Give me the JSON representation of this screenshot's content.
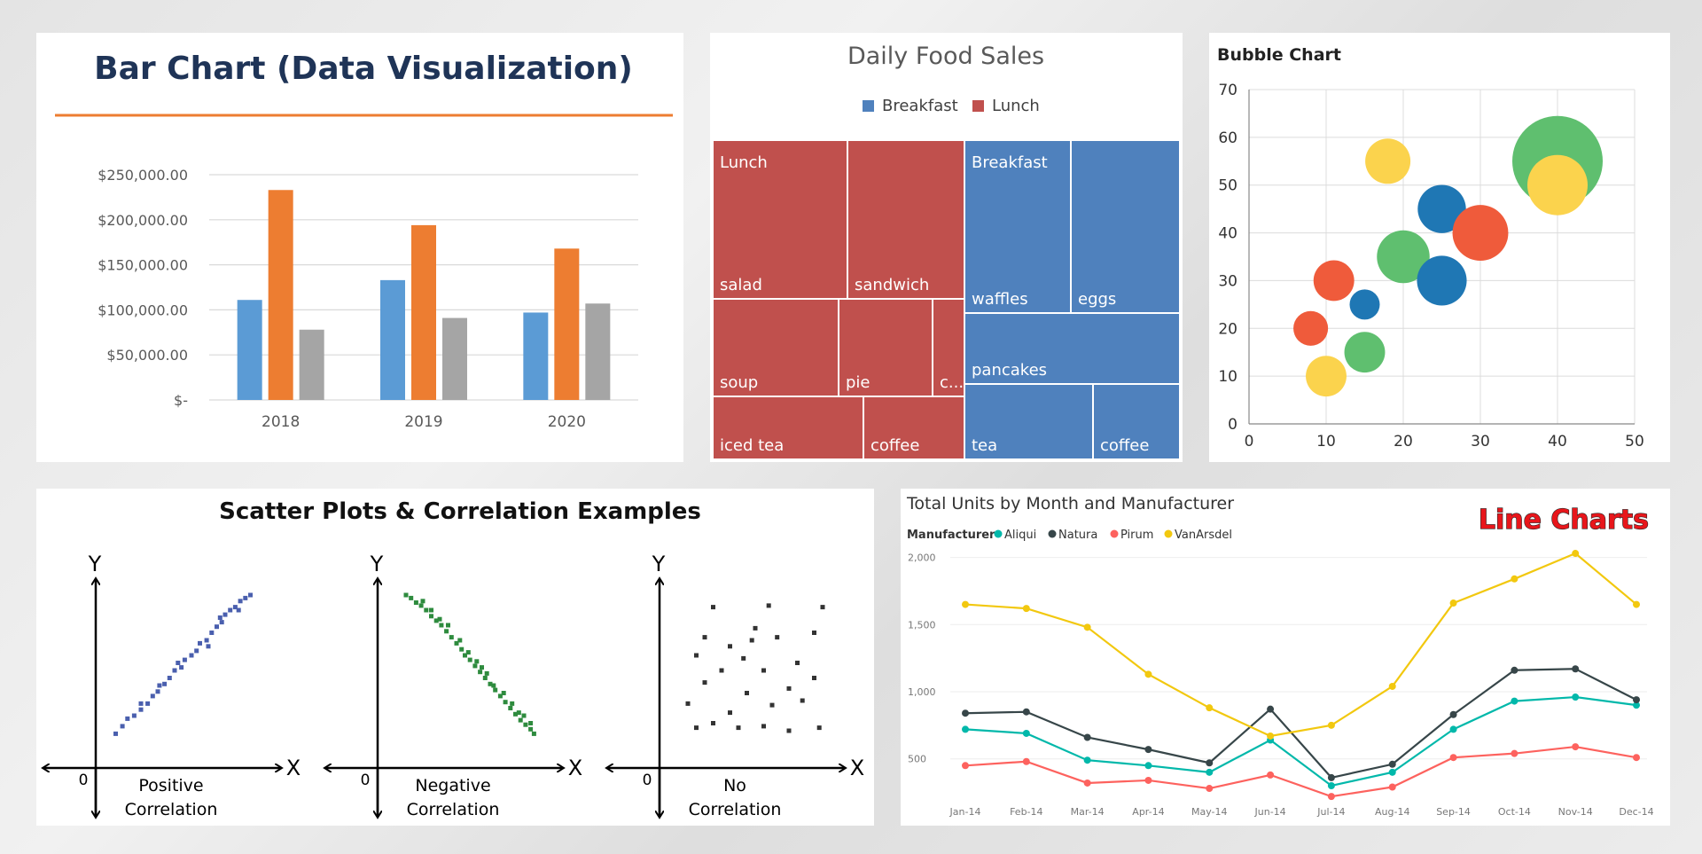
{
  "chart_data": [
    {
      "type": "bar",
      "title": "Bar Chart (Data Visualization)",
      "categories": [
        "2018",
        "2019",
        "2020"
      ],
      "series": [
        {
          "values": [
            111000,
            133000,
            97000
          ],
          "color": "#5b9bd5"
        },
        {
          "values": [
            233000,
            194000,
            168000
          ],
          "color": "#ed7d31"
        },
        {
          "values": [
            78000,
            91000,
            107000
          ],
          "color": "#a5a5a5"
        }
      ],
      "yticks": [
        0,
        50000,
        100000,
        150000,
        200000,
        250000
      ],
      "ytick_labels": [
        "$-",
        "$50,000.00",
        "$100,000.00",
        "$150,000.00",
        "$200,000.00",
        "$250,000.00"
      ],
      "ylim": [
        0,
        250000
      ],
      "accent": "#ed7d31"
    },
    {
      "type": "treemap",
      "title": "Daily Food Sales",
      "legend": [
        {
          "name": "Breakfast",
          "color": "#4f81bd"
        },
        {
          "name": "Lunch",
          "color": "#c0504d"
        }
      ],
      "groups": [
        {
          "name": "Lunch",
          "items": [
            {
              "label": "salad"
            },
            {
              "label": "sandwich"
            },
            {
              "label": "soup"
            },
            {
              "label": "pie"
            },
            {
              "label": "c..."
            },
            {
              "label": "iced tea"
            },
            {
              "label": "coffee"
            }
          ]
        },
        {
          "name": "Breakfast",
          "items": [
            {
              "label": "waffles"
            },
            {
              "label": "eggs"
            },
            {
              "label": "pancakes"
            },
            {
              "label": "tea"
            },
            {
              "label": "coffee"
            }
          ]
        }
      ]
    },
    {
      "type": "bubble",
      "title": "Bubble Chart",
      "xlim": [
        0,
        50
      ],
      "ylim": [
        0,
        70
      ],
      "xticks": [
        0,
        10,
        20,
        30,
        40,
        50
      ],
      "yticks": [
        0,
        10,
        20,
        30,
        40,
        50,
        60,
        70
      ],
      "points": [
        {
          "x": 40,
          "y": 55,
          "size": 6,
          "color": "#5fbf6f"
        },
        {
          "x": 40,
          "y": 50,
          "size": 4,
          "color": "#fbd34d"
        },
        {
          "x": 18,
          "y": 55,
          "size": 3,
          "color": "#fbd34d"
        },
        {
          "x": 25,
          "y": 45,
          "size": 3.2,
          "color": "#1f77b4"
        },
        {
          "x": 30,
          "y": 40,
          "size": 3.7,
          "color": "#ef5b3b"
        },
        {
          "x": 20,
          "y": 35,
          "size": 3.5,
          "color": "#5fbf6f"
        },
        {
          "x": 25,
          "y": 30,
          "size": 3.3,
          "color": "#1f77b4"
        },
        {
          "x": 11,
          "y": 30,
          "size": 2.7,
          "color": "#ef5b3b"
        },
        {
          "x": 15,
          "y": 25,
          "size": 2,
          "color": "#1f77b4"
        },
        {
          "x": 8,
          "y": 20,
          "size": 2.3,
          "color": "#ef5b3b"
        },
        {
          "x": 15,
          "y": 15,
          "size": 2.7,
          "color": "#5fbf6f"
        },
        {
          "x": 10,
          "y": 10,
          "size": 2.7,
          "color": "#fbd34d"
        }
      ]
    },
    {
      "type": "scatter",
      "title": "Scatter Plots & Correlation Examples",
      "axis_x": "X",
      "axis_y": "Y",
      "origin": "0",
      "plots": [
        {
          "line1": "Positive",
          "line2": "Correlation",
          "color": "#4a5fae",
          "points": [
            [
              0.05,
              0.08
            ],
            [
              0.09,
              0.13
            ],
            [
              0.12,
              0.18
            ],
            [
              0.16,
              0.2
            ],
            [
              0.2,
              0.24
            ],
            [
              0.24,
              0.28
            ],
            [
              0.27,
              0.33
            ],
            [
              0.3,
              0.36
            ],
            [
              0.34,
              0.41
            ],
            [
              0.37,
              0.45
            ],
            [
              0.4,
              0.5
            ],
            [
              0.44,
              0.52
            ],
            [
              0.46,
              0.57
            ],
            [
              0.5,
              0.6
            ],
            [
              0.53,
              0.63
            ],
            [
              0.55,
              0.68
            ],
            [
              0.59,
              0.7
            ],
            [
              0.62,
              0.75
            ],
            [
              0.65,
              0.79
            ],
            [
              0.68,
              0.82
            ],
            [
              0.7,
              0.87
            ],
            [
              0.73,
              0.9
            ],
            [
              0.76,
              0.92
            ],
            [
              0.79,
              0.96
            ],
            [
              0.82,
              0.98
            ],
            [
              0.85,
              1.0
            ],
            [
              0.6,
              0.66
            ],
            [
              0.42,
              0.55
            ],
            [
              0.31,
              0.4
            ],
            [
              0.2,
              0.28
            ],
            [
              0.67,
              0.85
            ],
            [
              0.78,
              0.9
            ]
          ]
        },
        {
          "line1": "Negative",
          "line2": "Correlation",
          "color": "#2e8b3e",
          "points": [
            [
              0.1,
              1.0
            ],
            [
              0.13,
              0.98
            ],
            [
              0.16,
              0.95
            ],
            [
              0.19,
              0.93
            ],
            [
              0.22,
              0.9
            ],
            [
              0.25,
              0.86
            ],
            [
              0.28,
              0.83
            ],
            [
              0.31,
              0.8
            ],
            [
              0.34,
              0.76
            ],
            [
              0.37,
              0.72
            ],
            [
              0.4,
              0.68
            ],
            [
              0.43,
              0.64
            ],
            [
              0.45,
              0.6
            ],
            [
              0.48,
              0.57
            ],
            [
              0.51,
              0.53
            ],
            [
              0.54,
              0.49
            ],
            [
              0.57,
              0.45
            ],
            [
              0.6,
              0.41
            ],
            [
              0.63,
              0.37
            ],
            [
              0.66,
              0.33
            ],
            [
              0.69,
              0.29
            ],
            [
              0.72,
              0.25
            ],
            [
              0.75,
              0.21
            ],
            [
              0.78,
              0.17
            ],
            [
              0.81,
              0.14
            ],
            [
              0.84,
              0.11
            ],
            [
              0.86,
              0.08
            ],
            [
              0.2,
              0.96
            ],
            [
              0.3,
              0.84
            ],
            [
              0.42,
              0.7
            ],
            [
              0.52,
              0.56
            ],
            [
              0.62,
              0.4
            ],
            [
              0.73,
              0.28
            ],
            [
              0.8,
              0.2
            ],
            [
              0.35,
              0.8
            ],
            [
              0.47,
              0.62
            ],
            [
              0.58,
              0.48
            ],
            [
              0.68,
              0.35
            ],
            [
              0.77,
              0.22
            ],
            [
              0.84,
              0.15
            ],
            [
              0.25,
              0.9
            ],
            [
              0.55,
              0.52
            ]
          ]
        },
        {
          "line1": "No",
          "line2": "Correlation",
          "color": "#333333",
          "points": [
            [
              0.25,
              0.92
            ],
            [
              0.58,
              0.93
            ],
            [
              0.5,
              0.78
            ],
            [
              0.2,
              0.72
            ],
            [
              0.35,
              0.66
            ],
            [
              0.63,
              0.72
            ],
            [
              0.85,
              0.75
            ],
            [
              0.43,
              0.58
            ],
            [
              0.15,
              0.6
            ],
            [
              0.3,
              0.5
            ],
            [
              0.55,
              0.5
            ],
            [
              0.75,
              0.55
            ],
            [
              0.2,
              0.42
            ],
            [
              0.45,
              0.35
            ],
            [
              0.7,
              0.38
            ],
            [
              0.85,
              0.45
            ],
            [
              0.1,
              0.28
            ],
            [
              0.35,
              0.22
            ],
            [
              0.6,
              0.27
            ],
            [
              0.78,
              0.3
            ],
            [
              0.25,
              0.15
            ],
            [
              0.4,
              0.12
            ],
            [
              0.55,
              0.13
            ],
            [
              0.7,
              0.1
            ],
            [
              0.88,
              0.12
            ],
            [
              0.15,
              0.12
            ],
            [
              0.48,
              0.7
            ],
            [
              0.9,
              0.92
            ]
          ]
        }
      ]
    },
    {
      "type": "line",
      "title": "Total Units by Month and Manufacturer",
      "badge": "Line Charts",
      "legend_label": "Manufacturer",
      "x": [
        "Jan-14",
        "Feb-14",
        "Mar-14",
        "Apr-14",
        "May-14",
        "Jun-14",
        "Jul-14",
        "Aug-14",
        "Sep-14",
        "Oct-14",
        "Nov-14",
        "Dec-14"
      ],
      "yticks": [
        500,
        1000,
        1500,
        2000
      ],
      "ytick_labels": [
        "500",
        "1,000",
        "1,500",
        "2,000"
      ],
      "ylim": [
        300,
        2050
      ],
      "series": [
        {
          "name": "Aliqui",
          "color": "#01b8aa",
          "values": [
            720,
            690,
            490,
            450,
            400,
            640,
            300,
            400,
            720,
            930,
            960,
            900
          ]
        },
        {
          "name": "Natura",
          "color": "#374649",
          "values": [
            840,
            850,
            660,
            570,
            470,
            870,
            360,
            460,
            830,
            1160,
            1170,
            940
          ]
        },
        {
          "name": "Pirum",
          "color": "#fd625e",
          "values": [
            450,
            480,
            320,
            340,
            280,
            380,
            220,
            290,
            510,
            540,
            590,
            510
          ]
        },
        {
          "name": "VanArsdel",
          "color": "#f2c80f",
          "values": [
            1650,
            1620,
            1480,
            1130,
            880,
            670,
            750,
            1040,
            1660,
            1840,
            2030,
            1650
          ]
        }
      ]
    }
  ]
}
